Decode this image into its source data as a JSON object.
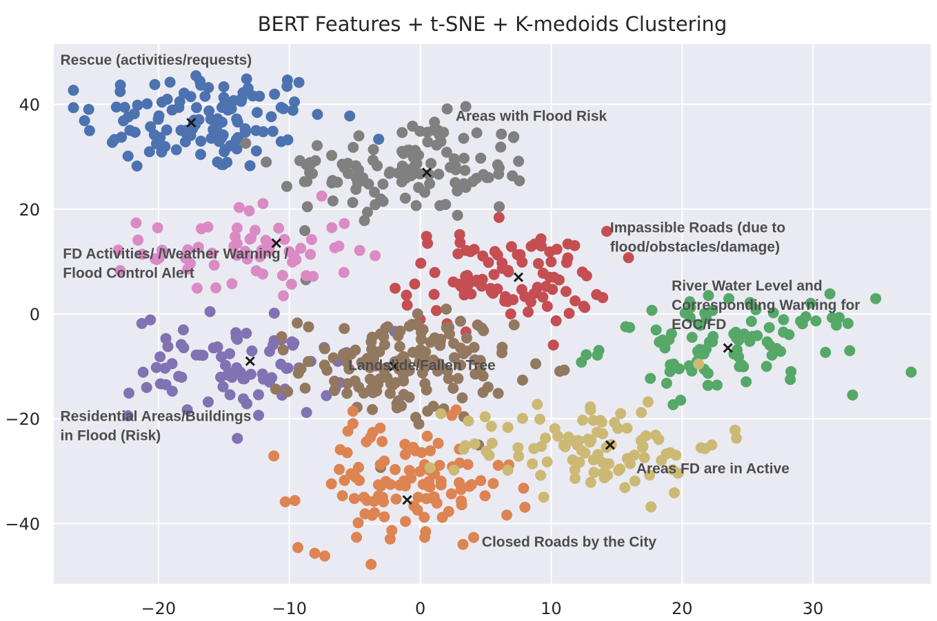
{
  "chart_data": {
    "type": "scatter",
    "title": "BERT Features + t-SNE + K-medoids Clustering",
    "xlabel": "",
    "ylabel": "",
    "xlim": [
      -28,
      39
    ],
    "ylim": [
      -51.5,
      51.5
    ],
    "xticks": [
      -20,
      -10,
      0,
      10,
      20,
      30
    ],
    "yticks": [
      -40,
      -20,
      0,
      20,
      40
    ],
    "xtick_labels": [
      "−20",
      "−10",
      "0",
      "10",
      "20",
      "30"
    ],
    "ytick_labels": [
      "−40",
      "−20",
      "0",
      "20",
      "40"
    ],
    "grid": true,
    "style": "seaborn darkgrid",
    "colors": {
      "axes_bg": "#eaeaf2",
      "grid": "#ffffff",
      "text": "#262626",
      "annotation": "#4d4d4d",
      "medoid": "#1a1a1a"
    },
    "medoid_marker": "x",
    "series": [
      {
        "color": "#4c72b0",
        "medoid": [
          -17.5,
          36.5
        ],
        "center": [
          -16.5,
          37.0
        ],
        "spread": [
          4.8,
          5.0
        ],
        "n": 120
      },
      {
        "color": "#808080",
        "medoid": [
          0.5,
          27.0
        ],
        "center": [
          -1.0,
          27.5
        ],
        "spread": [
          5.0,
          5.0
        ],
        "n": 120
      },
      {
        "color": "#da8bc3",
        "medoid": [
          -11.0,
          13.5
        ],
        "center": [
          -13.0,
          12.0
        ],
        "spread": [
          4.0,
          4.5
        ],
        "n": 65
      },
      {
        "color": "#c44e52",
        "medoid": [
          7.5,
          7.0
        ],
        "center": [
          6.5,
          7.0
        ],
        "spread": [
          4.0,
          4.5
        ],
        "n": 95
      },
      {
        "color": "#55a868",
        "medoid": [
          23.5,
          -6.5
        ],
        "center": [
          24.0,
          -6.0
        ],
        "spread": [
          5.0,
          4.5
        ],
        "n": 95
      },
      {
        "color": "#8172b3",
        "medoid": [
          -13.0,
          -9.0
        ],
        "center": [
          -14.0,
          -10.0
        ],
        "spread": [
          4.0,
          5.0
        ],
        "n": 80
      },
      {
        "color": "#937860",
        "medoid": [
          -2.0,
          -10.0
        ],
        "center": [
          -1.0,
          -10.0
        ],
        "spread": [
          4.0,
          5.0
        ],
        "n": 150
      },
      {
        "color": "#dd8452",
        "medoid": [
          -1.0,
          -35.5
        ],
        "center": [
          -1.0,
          -33.0
        ],
        "spread": [
          4.0,
          6.0
        ],
        "n": 110
      },
      {
        "color": "#ccb974",
        "medoid": [
          14.5,
          -25.0
        ],
        "center": [
          13.0,
          -25.0
        ],
        "spread": [
          5.0,
          4.5
        ],
        "n": 100
      }
    ],
    "annotations": [
      {
        "lines": [
          "Rescue (activities/requests)"
        ],
        "x": -27.5,
        "y": 48.5
      },
      {
        "lines": [
          "Areas with Flood Risk"
        ],
        "x": 2.7,
        "y": 37.8
      },
      {
        "lines": [
          "Impassible Roads (due to",
          "flood/obstacles/damage)"
        ],
        "x": 14.5,
        "y": 16.5
      },
      {
        "lines": [
          "FD Activities/ /Weather Warning /",
          "Flood Control Alert"
        ],
        "x": -27.3,
        "y": 11.5
      },
      {
        "lines": [
          "River Water Level and",
          "Corresponding Warning for",
          "EOC/FD"
        ],
        "x": 19.2,
        "y": 5.4
      },
      {
        "lines": [
          "Landslide/Fallen Tree"
        ],
        "x": -5.5,
        "y": -9.8
      },
      {
        "lines": [
          "Residential Areas/Buildings",
          "in Flood (Risk)"
        ],
        "x": -27.5,
        "y": -19.5
      },
      {
        "lines": [
          "Areas FD are in Active"
        ],
        "x": 16.5,
        "y": -29.5
      },
      {
        "lines": [
          "Closed Roads by the City"
        ],
        "x": 4.7,
        "y": -43.5
      }
    ]
  }
}
